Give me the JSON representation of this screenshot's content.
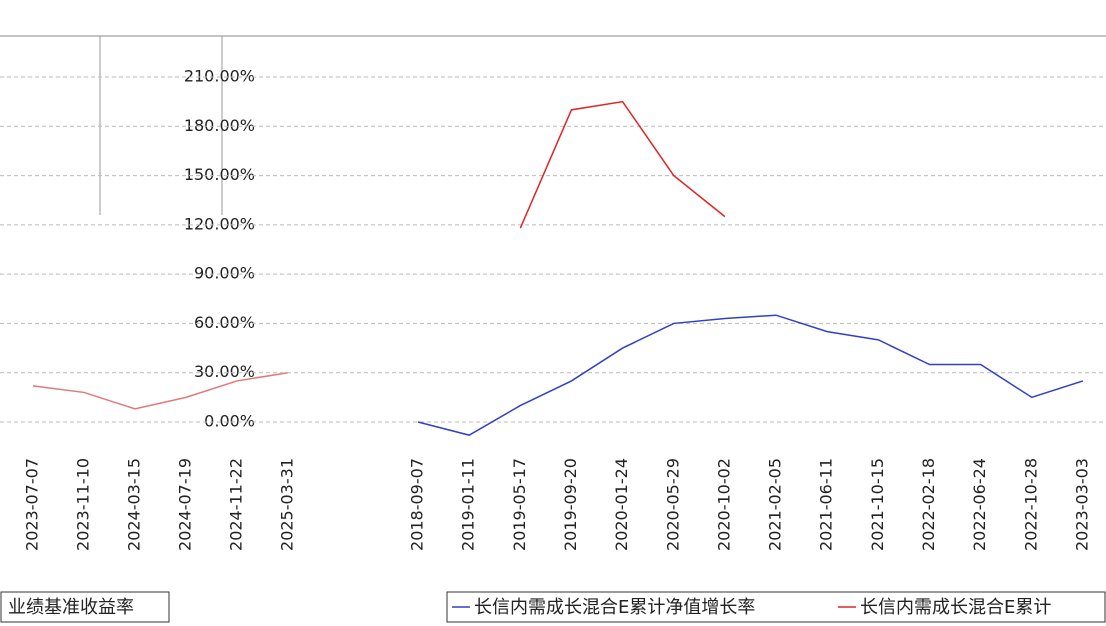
{
  "chart_data": [
    {
      "type": "line",
      "categories": [
        "2023-07-07",
        "2023-11-10",
        "2024-03-15",
        "2024-07-19",
        "2024-11-22",
        "2025-03-31"
      ],
      "series": [
        {
          "name": "业绩基准收益率",
          "color": "#e07a7a",
          "values": [
            22,
            18,
            8,
            15,
            25,
            30
          ]
        }
      ],
      "ylim": [
        0,
        210
      ]
    },
    {
      "type": "line",
      "categories": [
        "2018-09-07",
        "2019-01-11",
        "2019-05-17",
        "2019-09-20",
        "2020-01-24",
        "2020-05-29",
        "2020-10-02",
        "2021-02-05",
        "2021-06-11",
        "2021-10-15",
        "2022-02-18",
        "2022-06-24",
        "2022-10-28",
        "2023-03-03"
      ],
      "series": [
        {
          "name": "长信内需成长混合E累计净值增长率",
          "color": "#3040c8",
          "values": [
            0,
            -8,
            10,
            25,
            45,
            60,
            63,
            65,
            55,
            50,
            35,
            35,
            15,
            25
          ]
        },
        {
          "name": "长信内需成长混合E累计",
          "color": "#e02525",
          "values": [
            null,
            null,
            118,
            190,
            195,
            150,
            125,
            null,
            null,
            null,
            null,
            null,
            null,
            null
          ]
        }
      ],
      "ylim": [
        0,
        210
      ],
      "yticks": [
        {
          "value": 0,
          "label": "0.00%"
        },
        {
          "value": 30,
          "label": "30.00%"
        },
        {
          "value": 60,
          "label": "60.00%"
        },
        {
          "value": 90,
          "label": "90.00%"
        },
        {
          "value": 120,
          "label": "120.00%"
        },
        {
          "value": 150,
          "label": "150.00%"
        },
        {
          "value": 180,
          "label": "180.00%"
        },
        {
          "value": 210,
          "label": "210.00%"
        }
      ],
      "grid": true
    }
  ]
}
